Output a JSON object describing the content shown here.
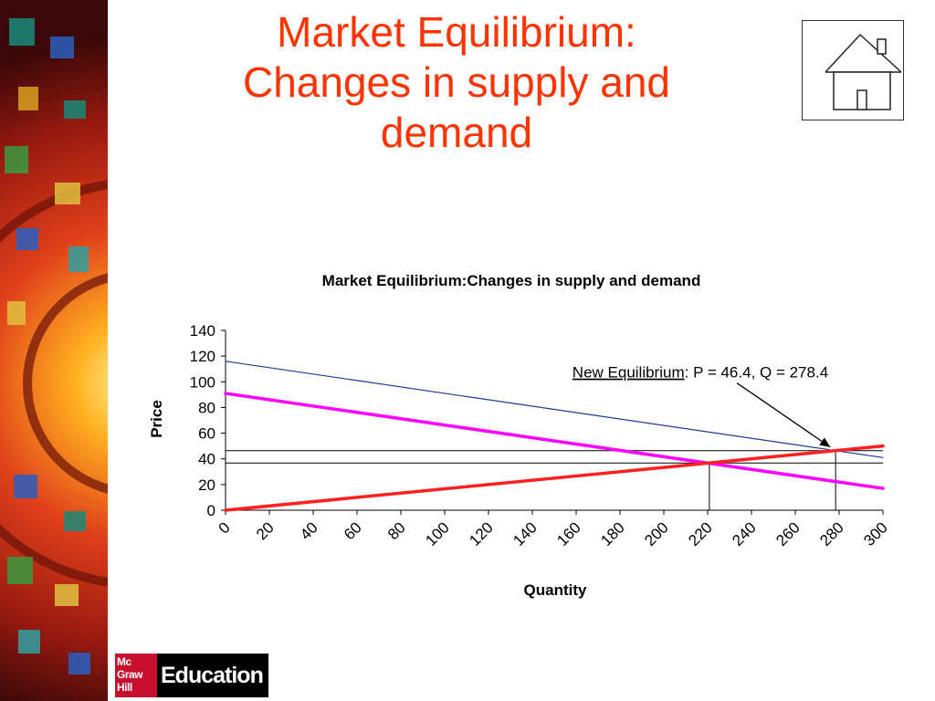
{
  "slide": {
    "title_lines": [
      "Market Equilibrium:",
      "Changes in supply and",
      "demand"
    ],
    "title_color": "#ff3300"
  },
  "home": {
    "icon": "house-icon"
  },
  "logo": {
    "brand_lines": [
      "Mc",
      "Graw",
      "Hill"
    ],
    "education": "Education"
  },
  "chart_data": {
    "type": "line",
    "title": "Market Equilibrium:Changes in supply and demand",
    "xlabel": "Quantity",
    "ylabel": "Price",
    "xlim": [
      0,
      300
    ],
    "ylim": [
      0,
      140
    ],
    "x_ticks": [
      0,
      20,
      40,
      60,
      80,
      100,
      120,
      140,
      160,
      180,
      200,
      220,
      240,
      260,
      280,
      300
    ],
    "y_ticks": [
      0,
      20,
      40,
      60,
      80,
      100,
      120,
      140
    ],
    "grid": false,
    "legend": "none",
    "series": [
      {
        "color": "#1f3a9a",
        "width": 1.2,
        "points": [
          [
            0,
            116
          ],
          [
            300,
            41
          ]
        ]
      },
      {
        "color": "#ff00ff",
        "width": 3.5,
        "points": [
          [
            0,
            91
          ],
          [
            300,
            17
          ]
        ]
      },
      {
        "color": "#ff2020",
        "width": 3.5,
        "points": [
          [
            0,
            0
          ],
          [
            300,
            50
          ]
        ]
      }
    ],
    "reference_lines": [
      {
        "y": 46.4,
        "x": 278.4
      },
      {
        "y": 36.8,
        "x": 220.8
      }
    ],
    "annotation": {
      "underlined": "New Equilibrium",
      "text": ": P = 46.4, Q = 278.4",
      "point": [
        278.4,
        46.4
      ]
    }
  }
}
